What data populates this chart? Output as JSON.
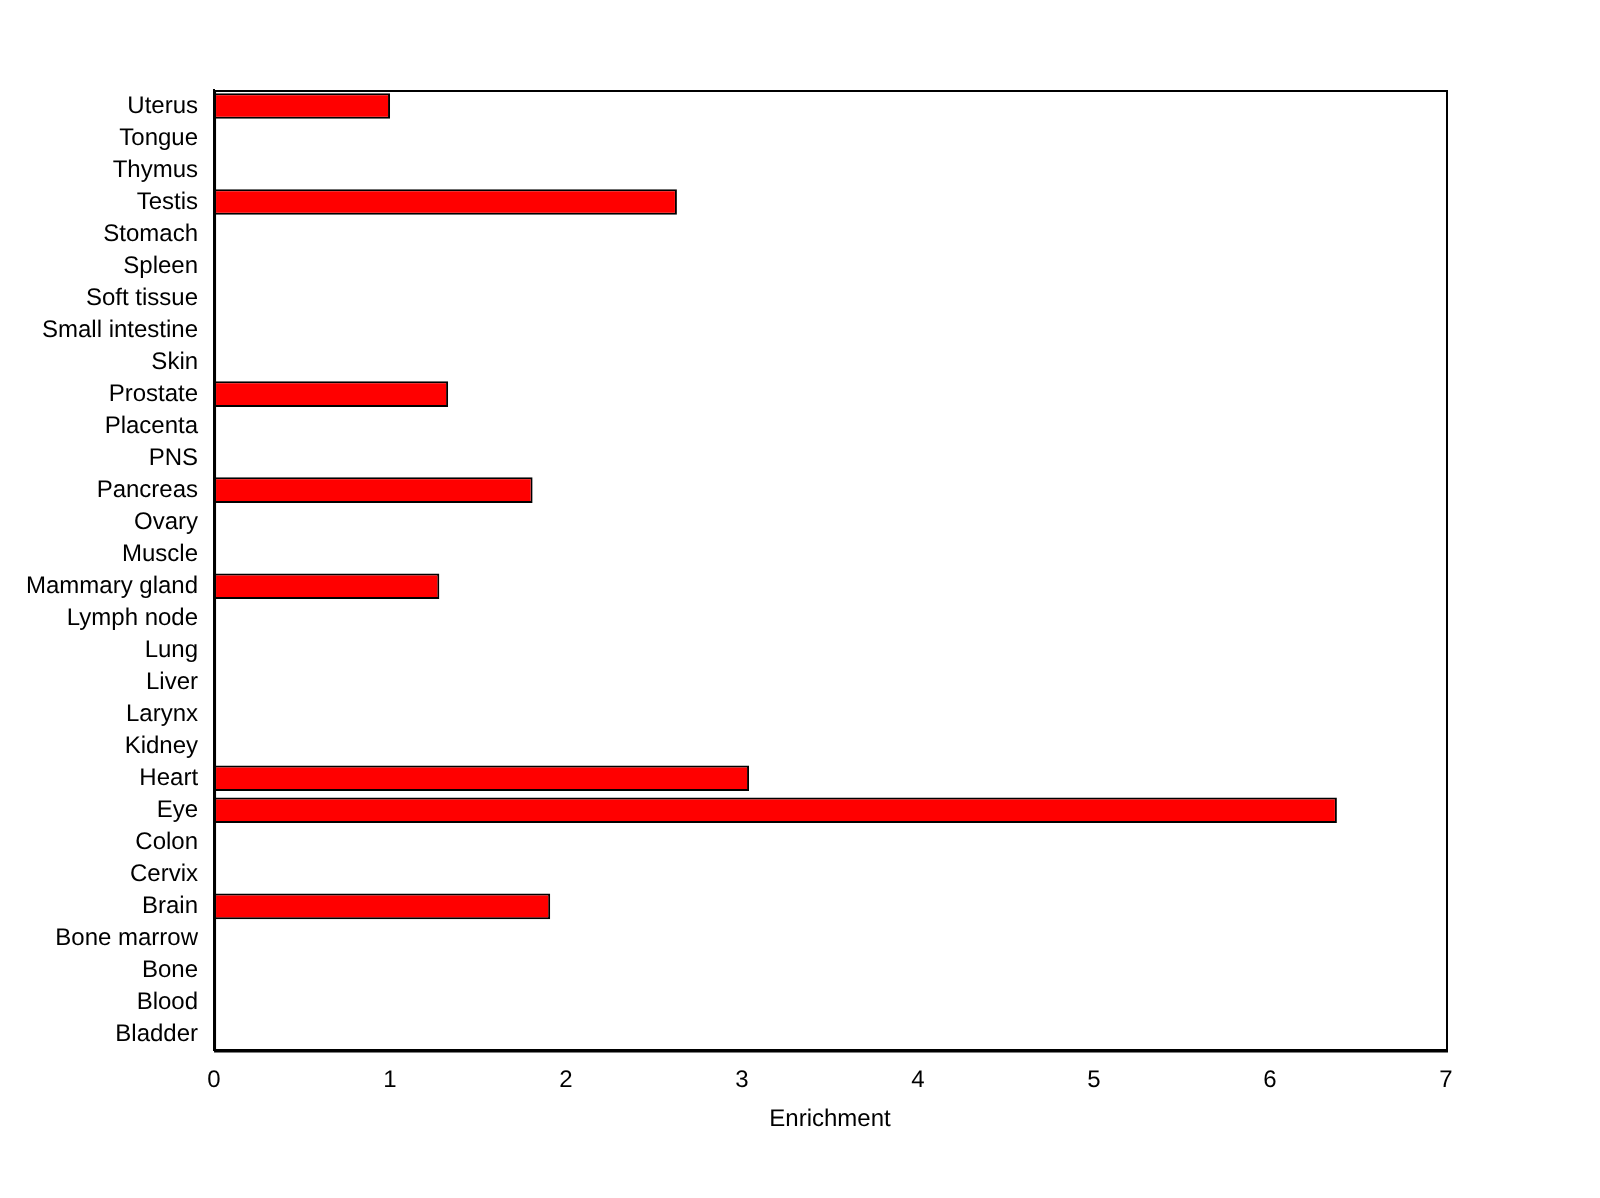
{
  "chart_data": {
    "type": "bar",
    "orientation": "horizontal",
    "xlabel": "Enrichment",
    "categories": [
      "Uterus",
      "Tongue",
      "Thymus",
      "Testis",
      "Stomach",
      "Spleen",
      "Soft tissue",
      "Small intestine",
      "Skin",
      "Prostate",
      "Placenta",
      "PNS",
      "Pancreas",
      "Ovary",
      "Muscle",
      "Mammary gland",
      "Lymph node",
      "Lung",
      "Liver",
      "Larynx",
      "Kidney",
      "Heart",
      "Eye",
      "Colon",
      "Cervix",
      "Brain",
      "Bone marrow",
      "Bone",
      "Blood",
      "Bladder"
    ],
    "values": [
      1.0,
      0,
      0,
      2.63,
      0,
      0,
      0,
      0,
      0,
      1.33,
      0,
      0,
      1.81,
      0,
      0,
      1.28,
      0,
      0,
      0,
      0,
      0,
      3.04,
      6.38,
      0,
      0,
      1.91,
      0,
      0,
      0,
      0
    ],
    "color": "#ff0000",
    "xlim": [
      0,
      7
    ],
    "xticks": [
      0,
      1,
      2,
      3,
      4,
      5,
      6,
      7
    ],
    "grid": false,
    "legend": false
  }
}
